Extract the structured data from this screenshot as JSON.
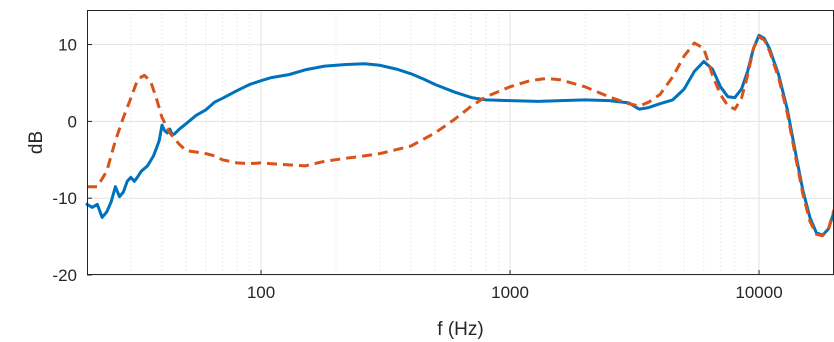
{
  "chart_data": {
    "type": "line",
    "title": "",
    "xlabel": "f (Hz)",
    "ylabel": "dB",
    "xscale": "log",
    "xlim": [
      20,
      20000
    ],
    "ylim": [
      -20,
      14.5
    ],
    "grid": true,
    "minor_grid_x": true,
    "legend": "none",
    "xticks": [
      100,
      1000,
      10000
    ],
    "xtick_labels": [
      "100",
      "1000",
      "10000"
    ],
    "yticks": [
      -20,
      -10,
      0,
      10
    ],
    "ytick_labels": [
      "-20",
      "-10",
      "0",
      "10"
    ],
    "series": [
      {
        "color": "#0072bd",
        "style": "solid",
        "points": [
          [
            20,
            -10.8
          ],
          [
            21,
            -11.2
          ],
          [
            22,
            -10.8
          ],
          [
            23,
            -12.5
          ],
          [
            24,
            -11.8
          ],
          [
            25,
            -10.5
          ],
          [
            26,
            -8.5
          ],
          [
            27,
            -9.8
          ],
          [
            28,
            -9.2
          ],
          [
            29,
            -7.8
          ],
          [
            30,
            -7.3
          ],
          [
            31,
            -7.8
          ],
          [
            32,
            -7.2
          ],
          [
            33,
            -6.5
          ],
          [
            35,
            -5.8
          ],
          [
            37,
            -4.5
          ],
          [
            38,
            -3.5
          ],
          [
            39,
            -2.5
          ],
          [
            40,
            -0.5
          ],
          [
            41,
            -1.2
          ],
          [
            42,
            -1.5
          ],
          [
            43,
            -1.0
          ],
          [
            44,
            -1.8
          ],
          [
            45,
            -1.6
          ],
          [
            47,
            -1.0
          ],
          [
            50,
            -0.3
          ],
          [
            55,
            0.8
          ],
          [
            60,
            1.5
          ],
          [
            65,
            2.5
          ],
          [
            70,
            3.0
          ],
          [
            80,
            4.0
          ],
          [
            90,
            4.8
          ],
          [
            100,
            5.3
          ],
          [
            110,
            5.7
          ],
          [
            130,
            6.1
          ],
          [
            150,
            6.7
          ],
          [
            180,
            7.2
          ],
          [
            220,
            7.4
          ],
          [
            260,
            7.5
          ],
          [
            300,
            7.3
          ],
          [
            350,
            6.8
          ],
          [
            400,
            6.2
          ],
          [
            450,
            5.5
          ],
          [
            500,
            4.8
          ],
          [
            600,
            3.8
          ],
          [
            700,
            3.1
          ],
          [
            800,
            2.8
          ],
          [
            1000,
            2.7
          ],
          [
            1300,
            2.6
          ],
          [
            1600,
            2.7
          ],
          [
            2000,
            2.8
          ],
          [
            2500,
            2.7
          ],
          [
            3000,
            2.4
          ],
          [
            3300,
            1.6
          ],
          [
            3600,
            1.8
          ],
          [
            4000,
            2.3
          ],
          [
            4500,
            2.8
          ],
          [
            5000,
            4.2
          ],
          [
            5500,
            6.5
          ],
          [
            6000,
            7.8
          ],
          [
            6500,
            6.8
          ],
          [
            7000,
            4.5
          ],
          [
            7500,
            3.2
          ],
          [
            8000,
            3.1
          ],
          [
            8500,
            4.2
          ],
          [
            9000,
            6.5
          ],
          [
            9500,
            9.5
          ],
          [
            10000,
            11.2
          ],
          [
            10500,
            10.8
          ],
          [
            11000,
            9.5
          ],
          [
            12000,
            6.0
          ],
          [
            13000,
            1.5
          ],
          [
            14000,
            -4.0
          ],
          [
            15000,
            -9.0
          ],
          [
            16000,
            -12.5
          ],
          [
            17000,
            -14.5
          ],
          [
            18000,
            -14.8
          ],
          [
            19000,
            -14.0
          ],
          [
            20000,
            -11.8
          ]
        ]
      },
      {
        "color": "#d95319",
        "style": "dashed",
        "points": [
          [
            20,
            -8.5
          ],
          [
            22,
            -8.5
          ],
          [
            24,
            -6.5
          ],
          [
            26,
            -2.5
          ],
          [
            28,
            0.5
          ],
          [
            30,
            3.0
          ],
          [
            32,
            5.5
          ],
          [
            34,
            6.0
          ],
          [
            36,
            5.2
          ],
          [
            38,
            3.0
          ],
          [
            40,
            0.5
          ],
          [
            43,
            -1.5
          ],
          [
            47,
            -3.0
          ],
          [
            50,
            -3.8
          ],
          [
            55,
            -4.0
          ],
          [
            60,
            -4.2
          ],
          [
            65,
            -4.5
          ],
          [
            70,
            -5.0
          ],
          [
            80,
            -5.4
          ],
          [
            90,
            -5.5
          ],
          [
            100,
            -5.4
          ],
          [
            120,
            -5.6
          ],
          [
            150,
            -5.8
          ],
          [
            180,
            -5.2
          ],
          [
            220,
            -4.8
          ],
          [
            260,
            -4.5
          ],
          [
            300,
            -4.2
          ],
          [
            400,
            -3.2
          ],
          [
            500,
            -1.5
          ],
          [
            600,
            0.3
          ],
          [
            700,
            2.0
          ],
          [
            800,
            3.2
          ],
          [
            1000,
            4.5
          ],
          [
            1200,
            5.3
          ],
          [
            1400,
            5.6
          ],
          [
            1600,
            5.4
          ],
          [
            2000,
            4.5
          ],
          [
            2500,
            3.2
          ],
          [
            3000,
            2.3
          ],
          [
            3300,
            2.0
          ],
          [
            3600,
            2.5
          ],
          [
            4000,
            3.5
          ],
          [
            4500,
            5.8
          ],
          [
            5000,
            8.5
          ],
          [
            5500,
            10.2
          ],
          [
            6000,
            9.5
          ],
          [
            6500,
            6.0
          ],
          [
            7000,
            3.5
          ],
          [
            7500,
            2.0
          ],
          [
            8000,
            1.6
          ],
          [
            8500,
            3.0
          ],
          [
            9000,
            6.0
          ],
          [
            9500,
            9.5
          ],
          [
            10000,
            11.0
          ],
          [
            10500,
            10.6
          ],
          [
            11000,
            9.2
          ],
          [
            12000,
            5.6
          ],
          [
            13000,
            1.0
          ],
          [
            14000,
            -4.5
          ],
          [
            15000,
            -9.5
          ],
          [
            16000,
            -13.0
          ],
          [
            17000,
            -14.7
          ],
          [
            18000,
            -14.9
          ],
          [
            19000,
            -14.0
          ],
          [
            20000,
            -11.5
          ]
        ]
      }
    ]
  }
}
